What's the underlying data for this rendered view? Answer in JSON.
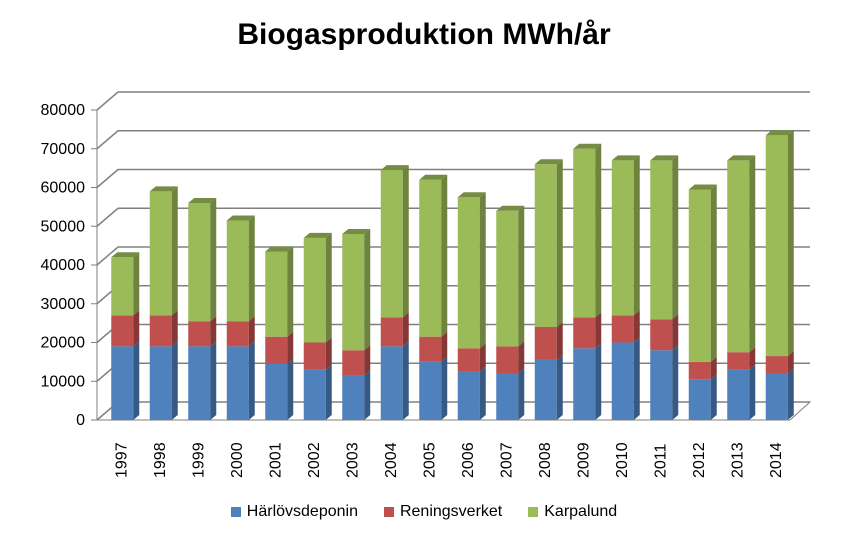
{
  "chart_data": {
    "type": "bar",
    "stacked": true,
    "three_d": true,
    "title": "Biogasproduktion MWh/år",
    "xlabel": "",
    "ylabel": "",
    "ylim": [
      0,
      80000
    ],
    "yticks": [
      "0",
      "10000",
      "20000",
      "30000",
      "40000",
      "50000",
      "60000",
      "70000",
      "80000"
    ],
    "grid": true,
    "legend_position": "bottom",
    "categories": [
      "1997",
      "1998",
      "1999",
      "2000",
      "2001",
      "2002",
      "2003",
      "2004",
      "2005",
      "2006",
      "2007",
      "2008",
      "2009",
      "2010",
      "2011",
      "2012",
      "2013",
      "2014"
    ],
    "series": [
      {
        "name": "Härlövsdeponin",
        "color": "#4f81bd",
        "values": [
          19000,
          19000,
          19000,
          19000,
          14500,
          13000,
          11500,
          19000,
          15000,
          12500,
          12000,
          15500,
          18500,
          20000,
          18000,
          10500,
          13000,
          12000
        ]
      },
      {
        "name": "Reningsverket",
        "color": "#c0504d",
        "values": [
          8000,
          8000,
          6500,
          6500,
          7000,
          7000,
          6500,
          7500,
          6500,
          6000,
          7000,
          8500,
          8000,
          7000,
          8000,
          4500,
          4500,
          4500
        ]
      },
      {
        "name": "Karpalund",
        "color": "#9bbb59",
        "values": [
          15000,
          32000,
          30500,
          26000,
          22000,
          27000,
          30000,
          38000,
          40500,
          39000,
          35000,
          42000,
          43500,
          40000,
          41000,
          44500,
          49500,
          57000
        ]
      }
    ]
  }
}
